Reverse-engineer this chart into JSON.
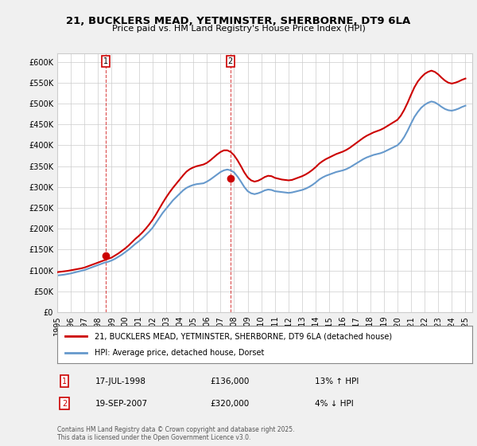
{
  "title": "21, BUCKLERS MEAD, YETMINSTER, SHERBORNE, DT9 6LA",
  "subtitle": "Price paid vs. HM Land Registry's House Price Index (HPI)",
  "legend_line1": "21, BUCKLERS MEAD, YETMINSTER, SHERBORNE, DT9 6LA (detached house)",
  "legend_line2": "HPI: Average price, detached house, Dorset",
  "annotation1_label": "1",
  "annotation1_date": "17-JUL-1998",
  "annotation1_price": "£136,000",
  "annotation1_hpi": "13% ↑ HPI",
  "annotation2_label": "2",
  "annotation2_date": "19-SEP-2007",
  "annotation2_price": "£320,000",
  "annotation2_hpi": "4% ↓ HPI",
  "copyright": "Contains HM Land Registry data © Crown copyright and database right 2025.\nThis data is licensed under the Open Government Licence v3.0.",
  "line_color_red": "#cc0000",
  "line_color_blue": "#6699cc",
  "bg_color": "#f0f0f0",
  "plot_bg_color": "#ffffff",
  "ylim": [
    0,
    620000
  ],
  "yticks": [
    0,
    50000,
    100000,
    150000,
    200000,
    250000,
    300000,
    350000,
    400000,
    450000,
    500000,
    550000,
    600000
  ],
  "sale1_x": 1998.54,
  "sale1_y": 136000,
  "sale2_x": 2007.72,
  "sale2_y": 320000,
  "hpi_years": [
    1995,
    1995.25,
    1995.5,
    1995.75,
    1996,
    1996.25,
    1996.5,
    1996.75,
    1997,
    1997.25,
    1997.5,
    1997.75,
    1998,
    1998.25,
    1998.5,
    1998.75,
    1999,
    1999.25,
    1999.5,
    1999.75,
    2000,
    2000.25,
    2000.5,
    2000.75,
    2001,
    2001.25,
    2001.5,
    2001.75,
    2002,
    2002.25,
    2002.5,
    2002.75,
    2003,
    2003.25,
    2003.5,
    2003.75,
    2004,
    2004.25,
    2004.5,
    2004.75,
    2005,
    2005.25,
    2005.5,
    2005.75,
    2006,
    2006.25,
    2006.5,
    2006.75,
    2007,
    2007.25,
    2007.5,
    2007.75,
    2008,
    2008.25,
    2008.5,
    2008.75,
    2009,
    2009.25,
    2009.5,
    2009.75,
    2010,
    2010.25,
    2010.5,
    2010.75,
    2011,
    2011.25,
    2011.5,
    2011.75,
    2012,
    2012.25,
    2012.5,
    2012.75,
    2013,
    2013.25,
    2013.5,
    2013.75,
    2014,
    2014.25,
    2014.5,
    2014.75,
    2015,
    2015.25,
    2015.5,
    2015.75,
    2016,
    2016.25,
    2016.5,
    2016.75,
    2017,
    2017.25,
    2017.5,
    2017.75,
    2018,
    2018.25,
    2018.5,
    2018.75,
    2019,
    2019.25,
    2019.5,
    2019.75,
    2020,
    2020.25,
    2020.5,
    2020.75,
    2021,
    2021.25,
    2021.5,
    2021.75,
    2022,
    2022.25,
    2022.5,
    2022.75,
    2023,
    2023.25,
    2023.5,
    2023.75,
    2024,
    2024.25,
    2024.5,
    2024.75,
    2025
  ],
  "hpi_values": [
    88000,
    89000,
    90000,
    91500,
    93000,
    95000,
    97000,
    99000,
    101000,
    104000,
    107000,
    110000,
    113000,
    116000,
    119000,
    121000,
    124000,
    128000,
    133000,
    138000,
    144000,
    150000,
    157000,
    164000,
    170000,
    177000,
    185000,
    193000,
    202000,
    214000,
    226000,
    238000,
    248000,
    258000,
    268000,
    276000,
    284000,
    292000,
    298000,
    302000,
    305000,
    307000,
    308000,
    309000,
    313000,
    318000,
    324000,
    330000,
    336000,
    340000,
    342000,
    340000,
    335000,
    325000,
    313000,
    300000,
    290000,
    285000,
    283000,
    285000,
    288000,
    292000,
    294000,
    293000,
    290000,
    289000,
    288000,
    287000,
    286000,
    287000,
    289000,
    291000,
    293000,
    296000,
    300000,
    305000,
    311000,
    318000,
    323000,
    327000,
    330000,
    333000,
    336000,
    338000,
    340000,
    343000,
    347000,
    352000,
    357000,
    362000,
    367000,
    371000,
    374000,
    377000,
    379000,
    381000,
    384000,
    388000,
    392000,
    396000,
    400000,
    408000,
    420000,
    435000,
    452000,
    468000,
    480000,
    490000,
    497000,
    502000,
    505000,
    503000,
    498000,
    492000,
    487000,
    484000,
    483000,
    485000,
    488000,
    492000,
    495000
  ],
  "price_years": [
    1995,
    1995.25,
    1995.5,
    1995.75,
    1996,
    1996.25,
    1996.5,
    1996.75,
    1997,
    1997.25,
    1997.5,
    1997.75,
    1998,
    1998.25,
    1998.5,
    1998.75,
    1999,
    1999.25,
    1999.5,
    1999.75,
    2000,
    2000.25,
    2000.5,
    2000.75,
    2001,
    2001.25,
    2001.5,
    2001.75,
    2002,
    2002.25,
    2002.5,
    2002.75,
    2003,
    2003.25,
    2003.5,
    2003.75,
    2004,
    2004.25,
    2004.5,
    2004.75,
    2005,
    2005.25,
    2005.5,
    2005.75,
    2006,
    2006.25,
    2006.5,
    2006.75,
    2007,
    2007.25,
    2007.5,
    2007.75,
    2008,
    2008.25,
    2008.5,
    2008.75,
    2009,
    2009.25,
    2009.5,
    2009.75,
    2010,
    2010.25,
    2010.5,
    2010.75,
    2011,
    2011.25,
    2011.5,
    2011.75,
    2012,
    2012.25,
    2012.5,
    2012.75,
    2013,
    2013.25,
    2013.5,
    2013.75,
    2014,
    2014.25,
    2014.5,
    2014.75,
    2015,
    2015.25,
    2015.5,
    2015.75,
    2016,
    2016.25,
    2016.5,
    2016.75,
    2017,
    2017.25,
    2017.5,
    2017.75,
    2018,
    2018.25,
    2018.5,
    2018.75,
    2019,
    2019.25,
    2019.5,
    2019.75,
    2020,
    2020.25,
    2020.5,
    2020.75,
    2021,
    2021.25,
    2021.5,
    2021.75,
    2022,
    2022.25,
    2022.5,
    2022.75,
    2023,
    2023.25,
    2023.5,
    2023.75,
    2024,
    2024.25,
    2024.5,
    2024.75,
    2025
  ],
  "price_values": [
    96000,
    97000,
    98000,
    99000,
    100500,
    102000,
    103500,
    105000,
    107000,
    110000,
    113000,
    116000,
    119000,
    122000,
    125000,
    128000,
    131000,
    136000,
    141000,
    147000,
    153000,
    160000,
    168000,
    176000,
    183000,
    191000,
    200000,
    210000,
    221000,
    234000,
    248000,
    262000,
    275000,
    287000,
    298000,
    308000,
    318000,
    328000,
    337000,
    343000,
    347000,
    350000,
    352000,
    354000,
    358000,
    364000,
    371000,
    378000,
    384000,
    388000,
    388000,
    384000,
    376000,
    364000,
    350000,
    335000,
    323000,
    316000,
    313000,
    315000,
    319000,
    324000,
    327000,
    326000,
    322000,
    320000,
    318000,
    317000,
    316000,
    317000,
    320000,
    323000,
    326000,
    330000,
    335000,
    341000,
    348000,
    356000,
    362000,
    367000,
    371000,
    375000,
    379000,
    382000,
    385000,
    389000,
    394000,
    400000,
    406000,
    412000,
    418000,
    423000,
    427000,
    431000,
    434000,
    437000,
    441000,
    446000,
    451000,
    456000,
    461000,
    471000,
    485000,
    502000,
    521000,
    539000,
    553000,
    563000,
    571000,
    576000,
    579000,
    576000,
    570000,
    562000,
    555000,
    550000,
    548000,
    550000,
    553000,
    557000,
    560000
  ],
  "xmin": 1995,
  "xmax": 2025.5
}
